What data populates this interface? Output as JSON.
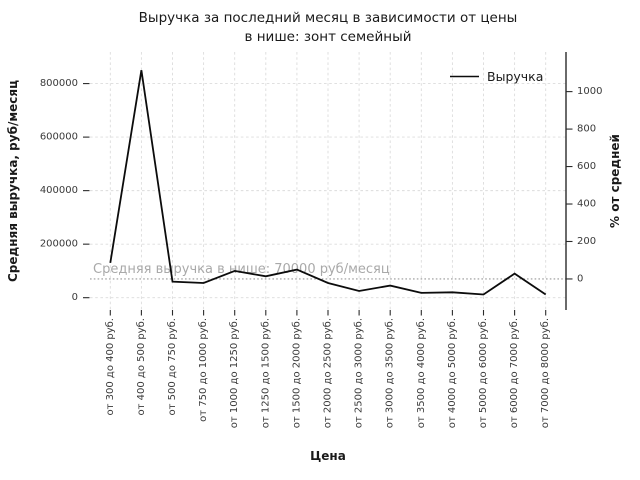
{
  "chart_data": {
    "type": "line",
    "title": "Выручка за последний месяц в зависимости от цены в нише: зонт семейный",
    "title_lines": [
      "Выручка за последний месяц в зависимости от цены",
      "в нише: зонт семейный"
    ],
    "xlabel": "Цена",
    "ylabel_left": "Средняя выручка, руб/месяц",
    "ylabel_right": "% от средней",
    "categories": [
      "от 300 до 400 руб.",
      "от 400 до 500 руб.",
      "от 500 до 750 руб.",
      "от 750 до 1000 руб.",
      "от 1000 до 1250 руб.",
      "от 1250 до 1500 руб.",
      "от 1500 до 2000 руб.",
      "от 2000 до 2500 руб.",
      "от 2500 до 3000 руб.",
      "от 3000 до 3500 руб.",
      "от 3500 до 4000 руб.",
      "от 4000 до 5000 руб.",
      "от 5000 до 6000 руб.",
      "от 6000 до 7000 руб.",
      "от 7000 до 8000 руб."
    ],
    "series": [
      {
        "name": "Выручка",
        "values": [
          130000,
          850000,
          60000,
          55000,
          100000,
          80000,
          105000,
          55000,
          25000,
          45000,
          18000,
          20000,
          12000,
          90000,
          12000
        ]
      }
    ],
    "average_line": {
      "value": 70000,
      "label": "Средняя выручка в нише: 70000 руб/месяц"
    },
    "y_left_ticks": [
      0,
      200000,
      400000,
      600000,
      800000
    ],
    "y_right_ticks": [
      0,
      200,
      400,
      600,
      800,
      1000
    ],
    "ylim_left": [
      -46000,
      918000
    ],
    "right_axis_relation": "percent_deviation_from_average",
    "legend_position": "upper right",
    "grid": true,
    "colors": {
      "line": "#0c0c0c",
      "average_line": "#999999",
      "annotation": "#a9a9a9",
      "grid": "#dcdcdc",
      "tick_label": "#3a3a3a",
      "text": "#1a1a1a",
      "spine": "#2b2b2b"
    }
  }
}
